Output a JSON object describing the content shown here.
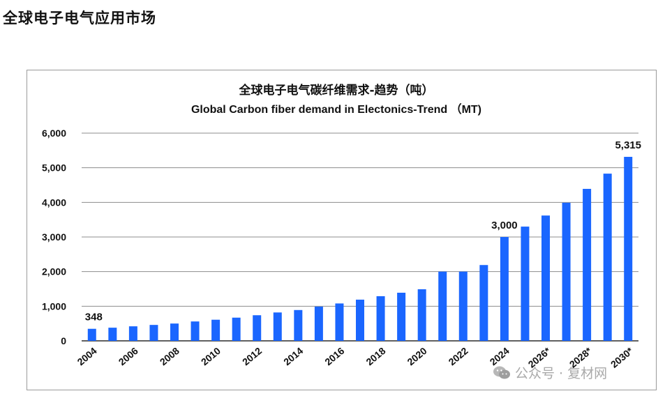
{
  "page": {
    "heading": "全球电子电气应用市场"
  },
  "watermark": {
    "text": "公众号 · 复材网"
  },
  "colors": {
    "bar": "#1a66ff",
    "grid": "#8c8c8c",
    "axis": "#000000",
    "text": "#111111"
  },
  "chart_data": {
    "type": "bar",
    "title": "全球电子电气碳纤维需求-趋势（吨）",
    "subtitle": "Global Carbon fiber demand in Electonics-Trend （MT)",
    "xlabel": "",
    "ylabel": "",
    "ylim": [
      0,
      6000
    ],
    "yticks": [
      0,
      1000,
      2000,
      3000,
      4000,
      5000,
      6000
    ],
    "ytick_labels": [
      "0",
      "1,000",
      "2,000",
      "3,000",
      "4,000",
      "5,000",
      "6,000"
    ],
    "grid": true,
    "categories": [
      "2004",
      "2005",
      "2006",
      "2007",
      "2008",
      "2009",
      "2010",
      "2011",
      "2012",
      "2013",
      "2014",
      "2015",
      "2016",
      "2017",
      "2018",
      "2019",
      "2020",
      "2021",
      "2022",
      "2023",
      "2024",
      "2025",
      "2026*",
      "2027",
      "2028*",
      "2029",
      "2030*"
    ],
    "xtick_labels": [
      "2004",
      "",
      "2006",
      "",
      "2008",
      "",
      "2010",
      "",
      "2012",
      "",
      "2014",
      "",
      "2016",
      "",
      "2018",
      "",
      "2020",
      "",
      "2022",
      "",
      "2024",
      "",
      "2026*",
      "",
      "2028*",
      "",
      "2030*"
    ],
    "values": [
      348,
      380,
      420,
      460,
      500,
      560,
      610,
      670,
      740,
      820,
      890,
      990,
      1080,
      1190,
      1290,
      1390,
      1490,
      2000,
      2000,
      2190,
      3000,
      3300,
      3620,
      3990,
      4390,
      4830,
      5315
    ],
    "data_labels": [
      {
        "index": 0,
        "text": "348"
      },
      {
        "index": 20,
        "text": "3,000"
      },
      {
        "index": 26,
        "text": "5,315"
      }
    ]
  }
}
